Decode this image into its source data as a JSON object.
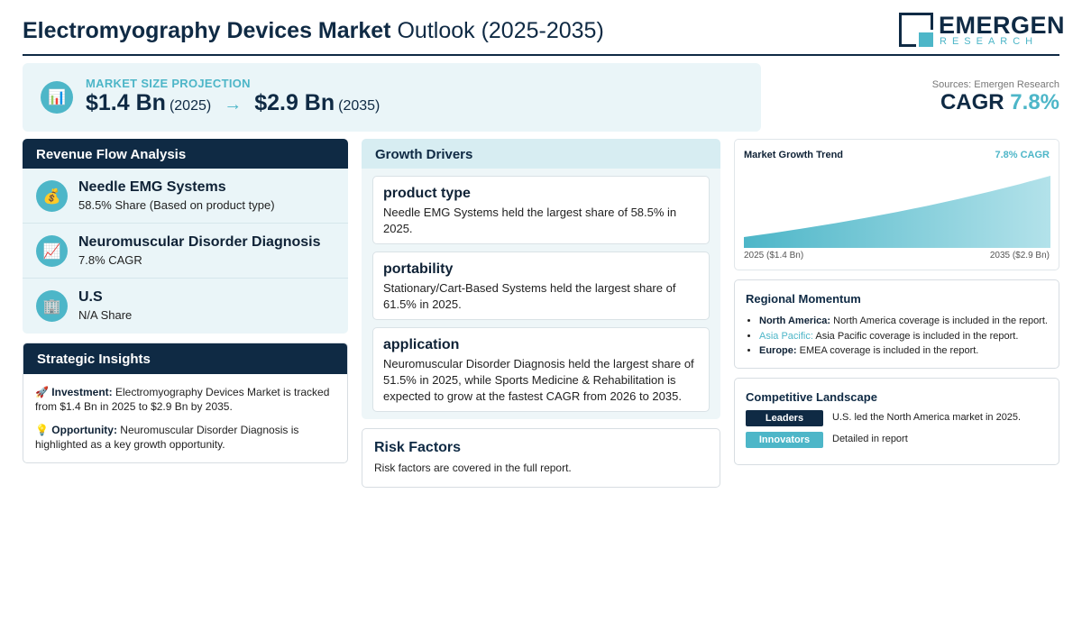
{
  "header": {
    "title_bold": "Electromyography Devices Market",
    "title_light": "Outlook (2025-2035)",
    "logo_name": "EMERGEN",
    "logo_sub": "RESEARCH"
  },
  "projection": {
    "label": "MARKET SIZE PROJECTION",
    "start_value": "$1.4 Bn",
    "start_year": "(2025)",
    "arrow": "→",
    "end_value": "$2.9 Bn",
    "end_year": "(2035)",
    "icon": "bar-chart-icon"
  },
  "sources": "Sources: Emergen Research",
  "cagr": {
    "label": "CAGR",
    "value": "7.8%"
  },
  "revenue_flow": {
    "title": "Revenue Flow Analysis",
    "items": [
      {
        "icon": "money-bag-icon",
        "glyph": "💰",
        "title": "Needle EMG Systems",
        "sub": "58.5% Share (Based on product type)"
      },
      {
        "icon": "chart-up-icon",
        "glyph": "📈",
        "title": "Neuromuscular Disorder Diagnosis",
        "sub": "7.8% CAGR"
      },
      {
        "icon": "building-icon",
        "glyph": "🏢",
        "title": "U.S",
        "sub": "N/A Share"
      }
    ]
  },
  "insights": {
    "title": "Strategic Insights",
    "investment_glyph": "🚀",
    "investment_label": "Investment:",
    "investment_text": " Electromyography Devices Market is tracked from $1.4 Bn in 2025 to $2.9 Bn by 2035.",
    "opportunity_glyph": "💡",
    "opportunity_label": "Opportunity:",
    "opportunity_text": " Neuromuscular Disorder Diagnosis is highlighted as a key growth opportunity."
  },
  "growth_drivers": {
    "title": "Growth Drivers",
    "cards": [
      {
        "title": "product type",
        "text": "Needle EMG Systems held the largest share of 58.5% in 2025."
      },
      {
        "title": "portability",
        "text": "Stationary/Cart-Based Systems held the largest share of 61.5% in 2025."
      },
      {
        "title": "application",
        "text": "Neuromuscular Disorder Diagnosis held the largest share of 51.5% in 2025, while Sports Medicine & Rehabilitation is expected to grow at the fastest CAGR from 2026 to 2035."
      }
    ]
  },
  "risk": {
    "title": "Risk Factors",
    "text": "Risk factors are covered in the full report."
  },
  "trend": {
    "title": "Market Growth Trend",
    "cagr_label": "7.8% CAGR",
    "start_label": "2025 ($1.4 Bn)",
    "end_label": "2035 ($2.9 Bn)",
    "colors": {
      "fill_top": "#8ed3df",
      "fill_bottom": "#4db6c8"
    }
  },
  "chart_data": {
    "type": "area",
    "x": [
      2025,
      2035
    ],
    "values": [
      1.4,
      2.9
    ],
    "title": "Market Growth Trend",
    "xlabel": "",
    "ylabel": ""
  },
  "regional": {
    "title": "Regional Momentum",
    "items": [
      {
        "label": "North America:",
        "text": " North America coverage is included in the report."
      },
      {
        "label": "Asia Pacific:",
        "text": " Asia Pacific coverage is included in the report."
      },
      {
        "label": "Europe:",
        "text": " EMEA coverage is included in the report."
      }
    ]
  },
  "competitive": {
    "title": "Competitive Landscape",
    "leaders_label": "Leaders",
    "leaders_text": "U.S. led the North America market in 2025.",
    "innovators_label": "Innovators",
    "innovators_text": "Detailed in report"
  },
  "colors": {
    "navy": "#0f2a44",
    "teal": "#4db6c8",
    "panel": "#eaf5f8"
  }
}
